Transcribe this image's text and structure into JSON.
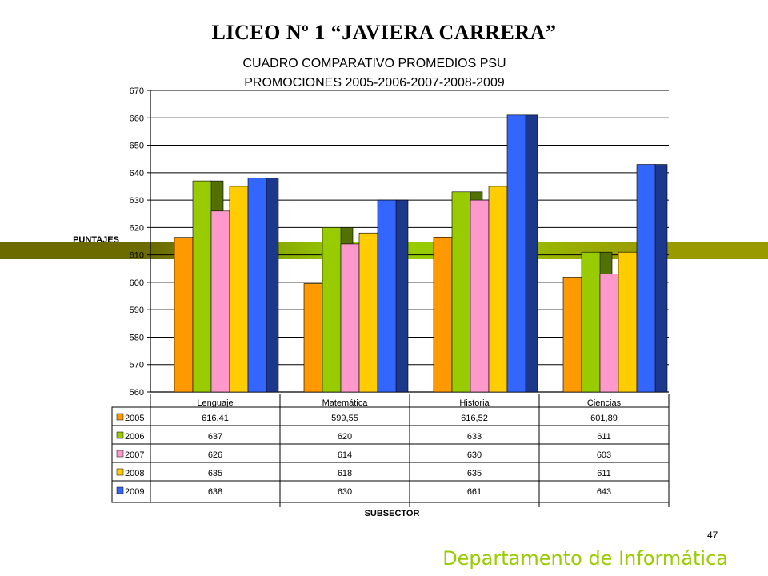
{
  "slide": {
    "title": "LICEO Nº 1 “JAVIERA CARRERA”",
    "page_number": "47",
    "footer": "Departamento de Informática",
    "band_colors": [
      "#6b6b00",
      "#99cc00",
      "#999900"
    ]
  },
  "chart_data": {
    "type": "bar",
    "title": "CUADRO COMPARATIVO PROMEDIOS PSU",
    "subtitle": "PROMOCIONES 2005-2006-2007-2008-2009",
    "ylabel": "PUNTAJES",
    "xlabel": "SUBSECTOR",
    "ylim": [
      560,
      670
    ],
    "yticks": [
      560,
      570,
      580,
      590,
      600,
      610,
      620,
      630,
      640,
      650,
      660,
      670
    ],
    "grid": true,
    "categories": [
      "Lenguaje",
      "Matemática",
      "Historia",
      "Ciencias"
    ],
    "series": [
      {
        "name": "2005",
        "color": "#ff9900",
        "values": [
          616.41,
          599.55,
          616.52,
          601.89
        ],
        "labels": [
          "616,41",
          "599,55",
          "616,52",
          "601,89"
        ]
      },
      {
        "name": "2006",
        "color": "#99cc00",
        "values": [
          637,
          620,
          633,
          611
        ],
        "labels": [
          "637",
          "620",
          "633",
          "611"
        ]
      },
      {
        "name": "2007",
        "color": "#ff99cc",
        "values": [
          626,
          614,
          630,
          603
        ],
        "labels": [
          "626",
          "614",
          "630",
          "603"
        ]
      },
      {
        "name": "2008",
        "color": "#ffcc00",
        "values": [
          635,
          618,
          635,
          611
        ],
        "labels": [
          "635",
          "618",
          "635",
          "611"
        ]
      },
      {
        "name": "2009",
        "color": "#3366ff",
        "values": [
          638,
          630,
          661,
          643
        ],
        "labels": [
          "638",
          "630",
          "661",
          "643"
        ]
      }
    ]
  }
}
